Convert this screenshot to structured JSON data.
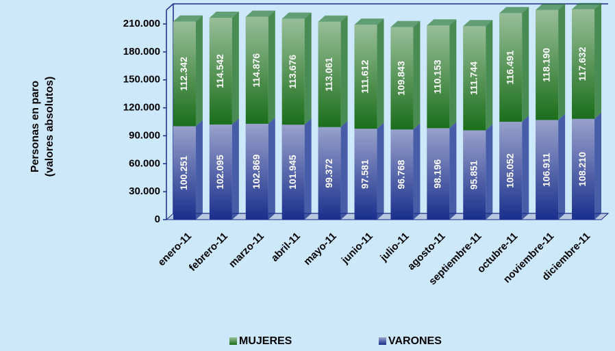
{
  "chart_data": {
    "type": "stacked_bar",
    "ylabel": [
      "Personas en paro",
      "(valores absolutos)"
    ],
    "categories": [
      "enero-11",
      "febrero-11",
      "marzo-11",
      "abril-11",
      "mayo-11",
      "junio-11",
      "julio-11",
      "agosto-11",
      "septiembre-11",
      "octubre-11",
      "noviembre-11",
      "diciembre-11"
    ],
    "series": [
      {
        "name": "VARONES",
        "color": "#1a2f8c",
        "values": [
          100251,
          102095,
          102869,
          101945,
          99372,
          97581,
          96768,
          98196,
          95851,
          105052,
          106911,
          108210
        ],
        "value_labels": [
          "100.251",
          "102.095",
          "102.869",
          "101.945",
          "99.372",
          "97.581",
          "96.768",
          "98.196",
          "95.851",
          "105.052",
          "106.911",
          "108.210"
        ]
      },
      {
        "name": "MUJERES",
        "color": "#1b6e1b",
        "values": [
          112342,
          114542,
          114876,
          113676,
          113061,
          111612,
          109843,
          110153,
          111744,
          116491,
          118190,
          117632
        ],
        "value_labels": [
          "112.342",
          "114.542",
          "114.876",
          "113.676",
          "113.061",
          "111.612",
          "109.843",
          "110.153",
          "111.744",
          "116.491",
          "118.190",
          "117.632"
        ]
      }
    ],
    "ylim": [
      0,
      225000
    ],
    "yticks": [
      0,
      {
        "value": 30000,
        "label": "30.000"
      },
      {
        "value": 60000,
        "label": "60.000"
      },
      {
        "value": 90000,
        "label": "90.000"
      },
      {
        "value": 120000,
        "label": "120.000"
      },
      {
        "value": 150000,
        "label": "150.000"
      },
      {
        "value": 180000,
        "label": "180.000"
      },
      {
        "value": 210000,
        "label": "210.000"
      }
    ],
    "grid": false
  }
}
